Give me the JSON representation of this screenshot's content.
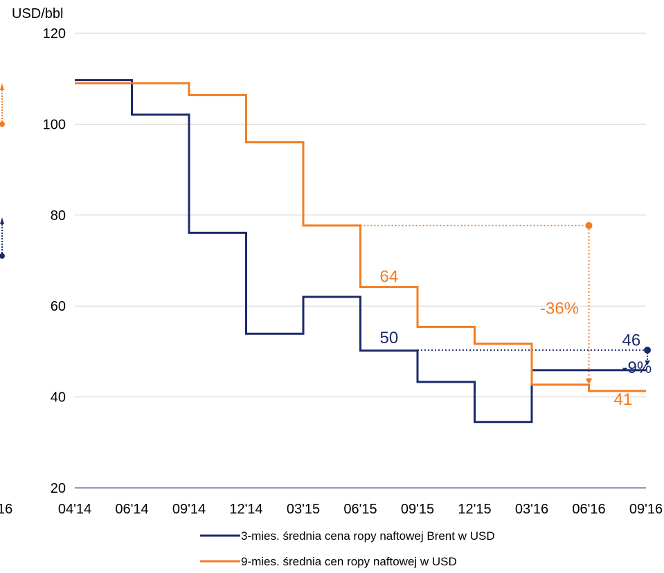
{
  "chart_data": {
    "type": "line",
    "step": true,
    "ylabel": "USD/bbl",
    "ylim": [
      20,
      120
    ],
    "yticks": [
      20,
      40,
      60,
      80,
      100,
      120
    ],
    "grid": true,
    "x_ticks": [
      "04'14",
      "06'14",
      "09'14",
      "12'14",
      "03'15",
      "06'15",
      "09'15",
      "12'15",
      "03'16",
      "06'16",
      "09'16"
    ],
    "partial_left_tick": "16",
    "legend_position": "bottom-center",
    "series": [
      {
        "name": "3-mies. średnia cena ropy naftowej Brent w USD",
        "color": "#1a2a6c",
        "steps": [
          {
            "from": "04'14",
            "to": "06'14",
            "y": 109.7
          },
          {
            "from": "06'14",
            "to": "09'14",
            "y": 102.1
          },
          {
            "from": "09'14",
            "to": "12'14",
            "y": 76.1
          },
          {
            "from": "12'14",
            "to": "03'15",
            "y": 53.9
          },
          {
            "from": "03'15",
            "to": "06'15",
            "y": 62.0
          },
          {
            "from": "06'15",
            "to": "09'15",
            "y": 50.2
          },
          {
            "from": "09'15",
            "to": "12'15",
            "y": 43.3
          },
          {
            "from": "12'15",
            "to": "03'16",
            "y": 34.5
          },
          {
            "from": "03'16",
            "to": "09'16",
            "y": 45.9
          }
        ]
      },
      {
        "name": "9-mies. średnia cen ropy naftowej w USD",
        "color": "#f47b20",
        "steps": [
          {
            "from": "04'14",
            "to": "09'14",
            "y": 109.0
          },
          {
            "from": "09'14",
            "to": "12'14",
            "y": 106.4
          },
          {
            "from": "12'14",
            "to": "03'15",
            "y": 96.0
          },
          {
            "from": "03'15",
            "to": "06'15",
            "y": 77.7
          },
          {
            "from": "06'15",
            "to": "09'15",
            "y": 64.2
          },
          {
            "from": "09'15",
            "to": "12'15",
            "y": 55.4
          },
          {
            "from": "12'15",
            "to": "03'16",
            "y": 51.7
          },
          {
            "from": "03'16",
            "to": "06'16",
            "y": 42.7
          },
          {
            "from": "06'16",
            "to": "09'16",
            "y": 41.3
          }
        ]
      }
    ],
    "annotations": [
      {
        "text": "64",
        "x": "06'15",
        "y": 66.5,
        "color": "#f47b20"
      },
      {
        "text": "50",
        "x": "06'15",
        "y": 53,
        "color": "#1a2a6c"
      },
      {
        "text": "-36%",
        "x": "03'16",
        "y": 59.5,
        "color": "#f47b20"
      },
      {
        "text": "46",
        "x": "06'16",
        "y": 52.5,
        "color": "#1a2a6c"
      },
      {
        "text": "-9%",
        "x": "06'16",
        "y": 46.5,
        "color": "#1a2a6c"
      },
      {
        "text": "41",
        "x": "06'16",
        "y": 39.5,
        "color": "#f47b20"
      }
    ],
    "reference_lines": [
      {
        "series": "orange",
        "y_from": 77.7,
        "y_to": 42.7,
        "color": "#f47b20"
      },
      {
        "series": "navy",
        "y_from": 50.3,
        "y_to": 45.9,
        "color": "#1a2a6c"
      }
    ]
  }
}
